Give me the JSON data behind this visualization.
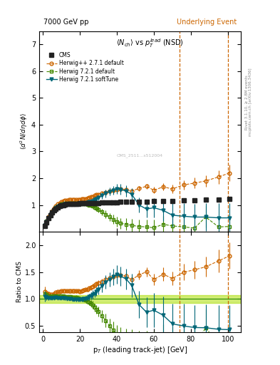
{
  "title_left": "7000 GeV pp",
  "title_right": "Underlying Event",
  "plot_title": "$\\langle N_{ch}\\rangle$ vs $p_T^{lead}$ (NSD)",
  "ylabel_main": "$\\langle d^2 N/d\\eta d\\phi \\rangle$",
  "ylabel_ratio": "Ratio to CMS",
  "xlabel": "p$_{T}$ (leading track-jet) [GeV]",
  "right_label_top": "Rivet 3.1.10, ≥ 2.8M events",
  "right_label_bottom": "mcplots.cern.ch [arXiv:1306.3436]",
  "watermark": "CMS_2511...s512004",
  "vline1_x": 74,
  "vline2_x": 100,
  "ylim_main": [
    0.0,
    7.5
  ],
  "ylim_ratio": [
    0.38,
    2.25
  ],
  "xlim": [
    -2,
    107
  ],
  "yticks_main": [
    1,
    2,
    3,
    4,
    5,
    6,
    7
  ],
  "yticks_ratio": [
    0.5,
    1.0,
    1.5,
    2.0
  ],
  "cms_color": "#222222",
  "herwig271_color": "#cc6600",
  "herwig721d_color": "#448800",
  "herwig721s_color": "#006677",
  "band_color": "#aadd00",
  "cms_x": [
    1,
    2,
    3,
    4,
    5,
    6,
    7,
    8,
    9,
    10,
    11,
    12,
    13,
    14,
    15,
    16,
    17,
    18,
    19,
    20,
    21,
    22,
    23,
    24,
    25,
    26,
    27,
    28,
    29,
    30,
    32,
    34,
    36,
    38,
    40,
    42,
    45,
    48,
    52,
    56,
    60,
    65,
    70,
    76,
    82,
    88,
    95,
    101
  ],
  "cms_y": [
    0.22,
    0.36,
    0.5,
    0.62,
    0.72,
    0.8,
    0.86,
    0.91,
    0.95,
    0.98,
    1.0,
    1.02,
    1.03,
    1.04,
    1.04,
    1.05,
    1.05,
    1.05,
    1.05,
    1.06,
    1.06,
    1.06,
    1.06,
    1.07,
    1.07,
    1.07,
    1.07,
    1.08,
    1.08,
    1.08,
    1.09,
    1.09,
    1.1,
    1.1,
    1.1,
    1.11,
    1.11,
    1.12,
    1.12,
    1.13,
    1.14,
    1.15,
    1.16,
    1.17,
    1.18,
    1.19,
    1.2,
    1.22
  ],
  "cms_yerr": [
    0.01,
    0.01,
    0.01,
    0.01,
    0.01,
    0.01,
    0.01,
    0.01,
    0.01,
    0.01,
    0.01,
    0.01,
    0.01,
    0.01,
    0.01,
    0.01,
    0.01,
    0.01,
    0.01,
    0.01,
    0.01,
    0.01,
    0.01,
    0.01,
    0.01,
    0.01,
    0.01,
    0.01,
    0.01,
    0.01,
    0.01,
    0.01,
    0.01,
    0.01,
    0.01,
    0.01,
    0.01,
    0.01,
    0.01,
    0.01,
    0.01,
    0.01,
    0.01,
    0.02,
    0.02,
    0.02,
    0.03,
    0.03
  ],
  "h271_x": [
    1,
    2,
    3,
    4,
    5,
    6,
    7,
    8,
    9,
    10,
    11,
    12,
    13,
    14,
    15,
    16,
    17,
    18,
    19,
    20,
    21,
    22,
    23,
    24,
    25,
    26,
    27,
    28,
    29,
    30,
    32,
    34,
    36,
    38,
    40,
    42,
    45,
    48,
    52,
    56,
    60,
    65,
    70,
    76,
    82,
    88,
    95,
    101
  ],
  "h271_y": [
    0.25,
    0.4,
    0.55,
    0.67,
    0.78,
    0.88,
    0.96,
    1.03,
    1.08,
    1.12,
    1.15,
    1.17,
    1.18,
    1.19,
    1.19,
    1.2,
    1.2,
    1.2,
    1.2,
    1.21,
    1.22,
    1.23,
    1.24,
    1.26,
    1.28,
    1.3,
    1.32,
    1.35,
    1.38,
    1.4,
    1.44,
    1.48,
    1.52,
    1.55,
    1.58,
    1.6,
    1.58,
    1.52,
    1.62,
    1.7,
    1.55,
    1.68,
    1.6,
    1.75,
    1.82,
    1.9,
    2.05,
    2.2
  ],
  "h271_yerr": [
    0.02,
    0.02,
    0.02,
    0.02,
    0.02,
    0.02,
    0.02,
    0.02,
    0.02,
    0.02,
    0.03,
    0.03,
    0.03,
    0.03,
    0.03,
    0.03,
    0.03,
    0.03,
    0.03,
    0.03,
    0.04,
    0.04,
    0.04,
    0.04,
    0.04,
    0.05,
    0.05,
    0.05,
    0.05,
    0.05,
    0.06,
    0.06,
    0.06,
    0.07,
    0.07,
    0.08,
    0.08,
    0.08,
    0.1,
    0.1,
    0.12,
    0.14,
    0.15,
    0.18,
    0.2,
    0.22,
    0.25,
    0.3
  ],
  "h721d_x": [
    1,
    2,
    3,
    4,
    5,
    6,
    7,
    8,
    9,
    10,
    11,
    12,
    13,
    14,
    15,
    16,
    17,
    18,
    19,
    20,
    21,
    22,
    23,
    24,
    25,
    26,
    27,
    28,
    29,
    30,
    32,
    34,
    36,
    38,
    40,
    42,
    45,
    48,
    52,
    56,
    60,
    65,
    70,
    76,
    82,
    88,
    95,
    101
  ],
  "h721d_y": [
    0.24,
    0.39,
    0.53,
    0.65,
    0.76,
    0.84,
    0.91,
    0.96,
    1.0,
    1.03,
    1.05,
    1.06,
    1.07,
    1.08,
    1.08,
    1.08,
    1.08,
    1.08,
    1.07,
    1.07,
    1.06,
    1.05,
    1.04,
    1.02,
    1.0,
    0.98,
    0.95,
    0.91,
    0.87,
    0.83,
    0.74,
    0.65,
    0.55,
    0.46,
    0.38,
    0.32,
    0.28,
    0.24,
    0.2,
    0.18,
    0.15,
    0.28,
    0.22,
    0.18,
    0.14,
    0.55,
    0.18,
    0.2
  ],
  "h721d_yerr": [
    0.02,
    0.02,
    0.02,
    0.02,
    0.02,
    0.02,
    0.02,
    0.02,
    0.02,
    0.02,
    0.03,
    0.03,
    0.03,
    0.03,
    0.03,
    0.03,
    0.03,
    0.04,
    0.04,
    0.04,
    0.04,
    0.05,
    0.05,
    0.05,
    0.06,
    0.07,
    0.08,
    0.08,
    0.09,
    0.1,
    0.12,
    0.14,
    0.15,
    0.17,
    0.19,
    0.2,
    0.22,
    0.24,
    0.26,
    0.28,
    0.3,
    0.32,
    0.34,
    0.36,
    0.38,
    0.4,
    0.42,
    0.45
  ],
  "h721s_x": [
    1,
    2,
    3,
    4,
    5,
    6,
    7,
    8,
    9,
    10,
    11,
    12,
    13,
    14,
    15,
    16,
    17,
    18,
    19,
    20,
    21,
    22,
    23,
    24,
    25,
    26,
    27,
    28,
    29,
    30,
    32,
    34,
    36,
    38,
    40,
    42,
    45,
    48,
    52,
    56,
    60,
    65,
    70,
    76,
    82,
    88,
    95,
    101
  ],
  "h721s_y": [
    0.23,
    0.37,
    0.51,
    0.63,
    0.73,
    0.81,
    0.88,
    0.93,
    0.97,
    1.0,
    1.02,
    1.03,
    1.04,
    1.04,
    1.04,
    1.04,
    1.04,
    1.04,
    1.04,
    1.05,
    1.05,
    1.06,
    1.07,
    1.09,
    1.11,
    1.13,
    1.16,
    1.19,
    1.23,
    1.27,
    1.35,
    1.43,
    1.5,
    1.55,
    1.6,
    1.58,
    1.52,
    1.4,
    1.0,
    0.85,
    0.9,
    0.8,
    0.62,
    0.58,
    0.55,
    0.55,
    0.52,
    0.52
  ],
  "h721s_yerr": [
    0.02,
    0.02,
    0.02,
    0.02,
    0.02,
    0.02,
    0.02,
    0.02,
    0.02,
    0.02,
    0.03,
    0.03,
    0.03,
    0.03,
    0.03,
    0.03,
    0.03,
    0.04,
    0.04,
    0.04,
    0.04,
    0.05,
    0.05,
    0.05,
    0.06,
    0.07,
    0.08,
    0.08,
    0.09,
    0.1,
    0.12,
    0.14,
    0.15,
    0.17,
    0.19,
    0.2,
    0.22,
    0.24,
    0.28,
    0.32,
    0.36,
    0.4,
    0.44,
    0.48,
    0.5,
    0.52,
    0.54,
    0.55
  ]
}
